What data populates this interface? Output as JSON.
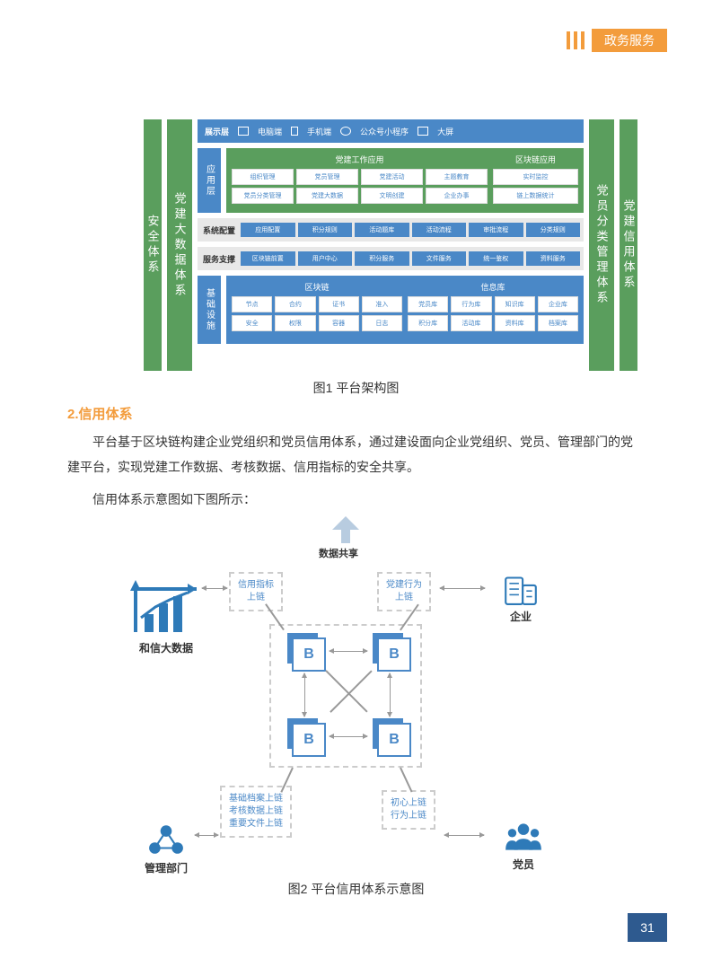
{
  "header": {
    "category": "政务服务"
  },
  "figure1": {
    "caption": "图1 平台架构图",
    "left_cols": [
      "安全体系",
      "党建大数据体系"
    ],
    "right_cols": [
      "党员分类管理体系",
      "党建信用体系"
    ],
    "display_layer": {
      "label": "展示层",
      "items": [
        "电脑端",
        "手机端",
        "公众号小程序",
        "大屏"
      ]
    },
    "app_layer": {
      "label": "应用层",
      "left": {
        "title": "党建工作应用",
        "cells": [
          "组织管理",
          "党员管理",
          "党建活动",
          "主题教育",
          "党员分类管理",
          "党建大数据",
          "文明创建",
          "企业办事"
        ]
      },
      "right": {
        "title": "区块链应用",
        "cells": [
          "实时监控",
          "链上数据统计"
        ]
      }
    },
    "config_layer": {
      "label": "系统配置",
      "cells": [
        "应用配置",
        "积分规则",
        "活动题库",
        "活动流程",
        "审批流程",
        "分类规则"
      ]
    },
    "service_layer": {
      "label": "服务支撑",
      "cells": [
        "区块链前置",
        "用户中心",
        "积分服务",
        "文件服务",
        "统一鉴权",
        "资料服务"
      ]
    },
    "base_layer": {
      "label": "基础设施",
      "left": {
        "title": "区块链",
        "cells": [
          "节点",
          "合约",
          "证书",
          "准入",
          "安全",
          "权限",
          "容器",
          "日志"
        ]
      },
      "right": {
        "title": "信息库",
        "cells": [
          "党员库",
          "行为库",
          "知识库",
          "企业库",
          "积分库",
          "活动库",
          "资料库",
          "档案库"
        ]
      }
    }
  },
  "section": {
    "title": "2.信用体系",
    "para1": "平台基于区块链构建企业党组织和党员信用体系，通过建设面向企业党组织、党员、管理部门的党建平台，实现党建工作数据、考核数据、信用指标的安全共享。",
    "para2": "信用体系示意图如下图所示："
  },
  "figure2": {
    "caption": "图2 平台信用体系示意图",
    "share": "数据共享",
    "nodes": {
      "tl": "和信大数据",
      "tr": "企业",
      "bl": "管理部门",
      "br": "党员"
    },
    "links": {
      "tl": "信用指标\n上链",
      "tr": "党建行为\n上链",
      "bl": "基础档案上链\n考核数据上链\n重要文件上链",
      "br": "初心上链\n行为上链"
    },
    "colors": {
      "accent": "#4a88c7",
      "icon": "#2e7ab8"
    }
  },
  "page": "31"
}
